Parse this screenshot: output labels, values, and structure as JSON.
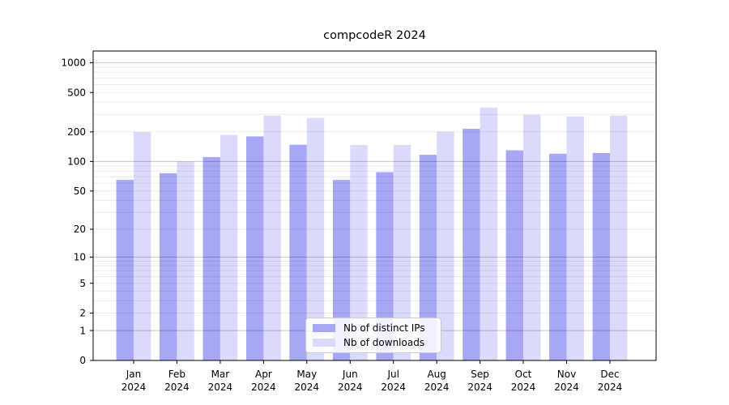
{
  "figure": {
    "title": "compcodeR 2024"
  },
  "legend": {
    "items": [
      {
        "label": "Nb of distinct IPs",
        "series_key": "ips"
      },
      {
        "label": "Nb of downloads",
        "series_key": "downloads"
      }
    ]
  },
  "colors": {
    "ips": "#a7a7f6",
    "downloads": "#dadafb",
    "grid_major": "rgba(0,0,0,0.22)",
    "grid_minor": "rgba(0,0,0,0.08)",
    "axis": "#000000",
    "text": "#000000",
    "legend_bg": "rgba(255,255,255,0.85)",
    "legend_border": "#cccccc"
  },
  "chart_data": {
    "type": "bar",
    "title": "compcodeR 2024",
    "categories": [
      "Jan",
      "Feb",
      "Mar",
      "Apr",
      "May",
      "Jun",
      "Jul",
      "Aug",
      "Sep",
      "Oct",
      "Nov",
      "Dec"
    ],
    "year_label": "2024",
    "series": [
      {
        "name": "Nb of distinct IPs",
        "key": "ips",
        "values": [
          65,
          76,
          111,
          180,
          148,
          65,
          78,
          117,
          215,
          130,
          120,
          122
        ]
      },
      {
        "name": "Nb of downloads",
        "key": "downloads",
        "values": [
          199,
          100,
          186,
          292,
          276,
          147,
          147,
          201,
          352,
          297,
          287,
          292
        ]
      }
    ],
    "yscale": "log1p",
    "yticks": [
      0,
      1,
      2,
      5,
      10,
      20,
      50,
      100,
      200,
      500,
      1000
    ],
    "ylim": [
      0,
      1310
    ],
    "grid": true,
    "grid_major_at": [
      1,
      10,
      100,
      1000
    ],
    "legend_position": "inside-bottom-center",
    "xlabel": "",
    "ylabel": ""
  }
}
